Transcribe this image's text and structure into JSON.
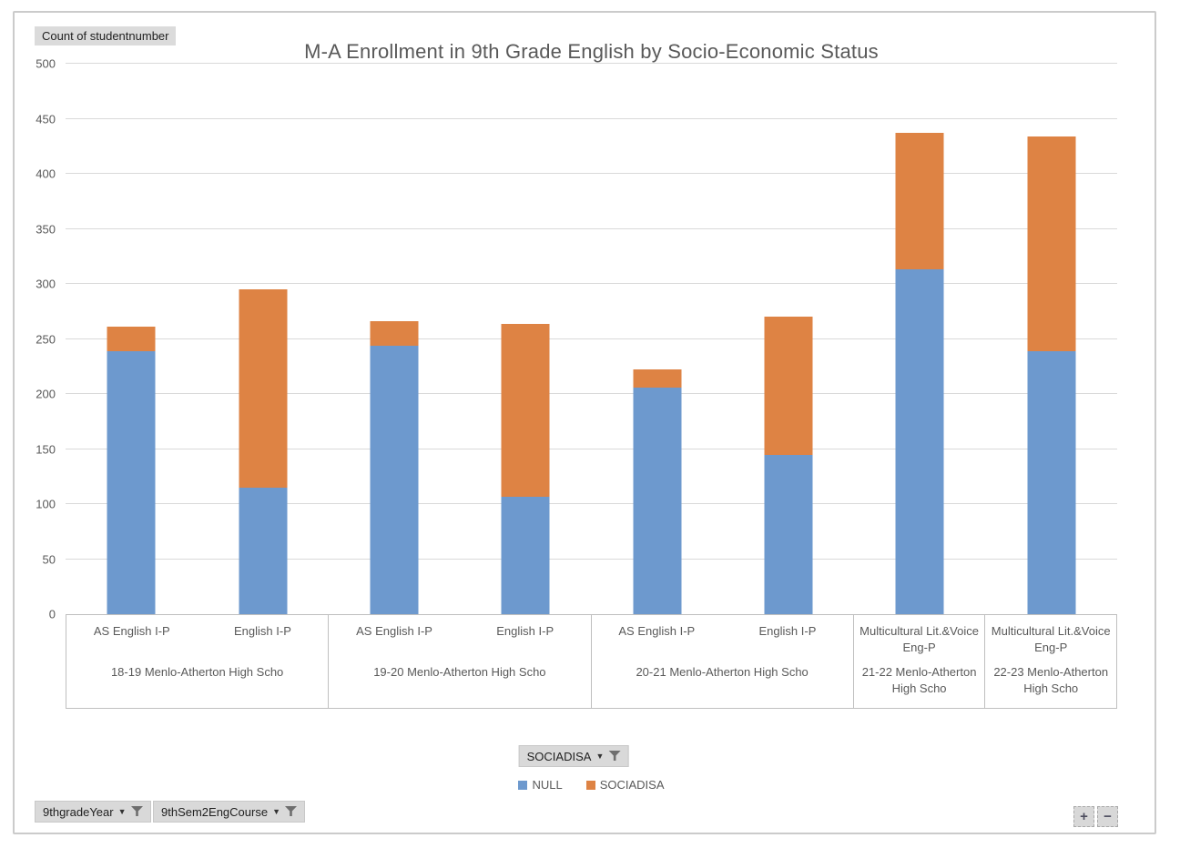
{
  "chart_data": {
    "type": "bar",
    "stacked": true,
    "title": "M-A Enrollment in 9th Grade English by Socio-Economic Status",
    "value_field": "Count of studentnumber",
    "ylabel": "",
    "xlabel": "",
    "ylim": [
      0,
      500
    ],
    "ytick_step": 50,
    "yticks": [
      0,
      50,
      100,
      150,
      200,
      250,
      300,
      350,
      400,
      450,
      500
    ],
    "grid": true,
    "legend_position": "bottom",
    "groups": [
      {
        "label": "18-19 Menlo-Atherton High Scho",
        "categories": [
          "AS English I-P",
          "English I-P"
        ]
      },
      {
        "label": "19-20 Menlo-Atherton High Scho",
        "categories": [
          "AS English I-P",
          "English I-P"
        ]
      },
      {
        "label": "20-21 Menlo-Atherton High Scho",
        "categories": [
          "AS English I-P",
          "English I-P"
        ]
      },
      {
        "label": "21-22 Menlo-Atherton High Scho",
        "categories": [
          "Multicultural Lit.&Voice Eng-P"
        ]
      },
      {
        "label": "22-23 Menlo-Atherton High Scho",
        "categories": [
          "Multicultural Lit.&Voice Eng-P"
        ]
      }
    ],
    "series": [
      {
        "name": "NULL",
        "color": "#6D99CE",
        "values": [
          239,
          115,
          244,
          107,
          206,
          145,
          313,
          239
        ]
      },
      {
        "name": "SOCIADISA",
        "color": "#DE8344",
        "values": [
          22,
          180,
          22,
          157,
          16,
          125,
          124,
          195
        ]
      }
    ],
    "totals": [
      261,
      295,
      266,
      264,
      222,
      270,
      437,
      434
    ]
  },
  "buttons": {
    "values_field": "Count of studentnumber",
    "legend_field": "SOCIADISA",
    "axis_field_year": "9thgradeYear",
    "axis_field_course": "9thSem2EngCourse",
    "zoom_in": "+",
    "zoom_out": "−"
  },
  "colors": {
    "series_null": "#6D99CE",
    "series_sociadisa": "#DE8344",
    "gridline": "#D9D9D9",
    "axis_text": "#595959",
    "button_bg": "#D9D9D9",
    "frame_border": "#CBCBCB"
  }
}
